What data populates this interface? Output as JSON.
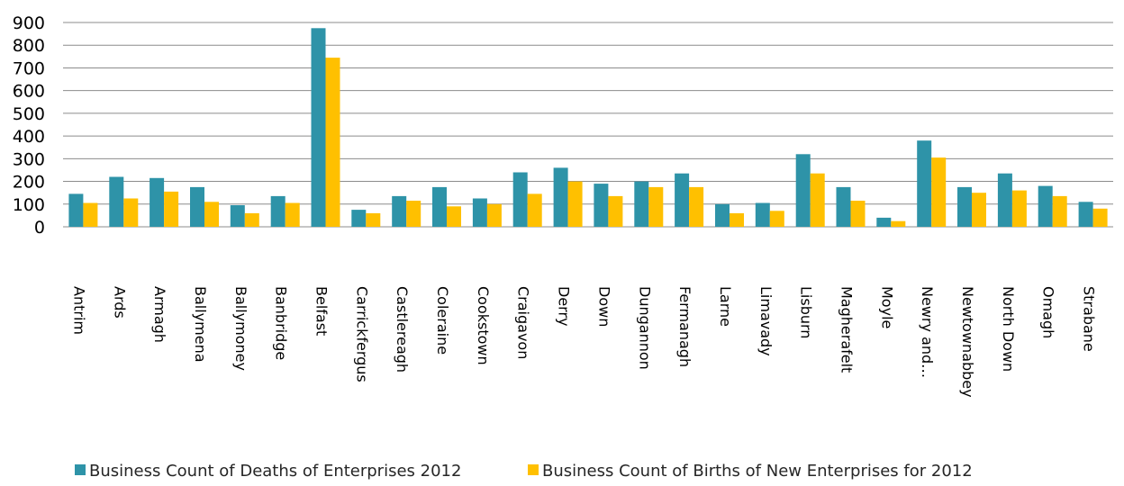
{
  "chart_data": {
    "type": "bar",
    "title": "",
    "xlabel": "",
    "ylabel": "",
    "ylim": [
      0,
      900
    ],
    "yticks": [
      0,
      100,
      200,
      300,
      400,
      500,
      600,
      700,
      800,
      900
    ],
    "grid": true,
    "legend_position": "bottom",
    "categories": [
      "Antrim",
      "Ards",
      "Armagh",
      "Ballymena",
      "Ballymoney",
      "Banbridge",
      "Belfast",
      "Carrickfergus",
      "Castlereagh",
      "Coleraine",
      "Cookstown",
      "Craigavon",
      "Derry",
      "Down",
      "Dungannon",
      "Fermanagh",
      "Larne",
      "Limavady",
      "Lisburn",
      "Magherafelt",
      "Moyle",
      "Newry and…",
      "Newtownabbey",
      "North Down",
      "Omagh",
      "Strabane"
    ],
    "series": [
      {
        "name": "Business Count of Deaths  of Enterprises 2012",
        "color": "#2e93a8",
        "values": [
          145,
          220,
          215,
          175,
          95,
          135,
          875,
          75,
          135,
          175,
          125,
          240,
          260,
          190,
          200,
          235,
          100,
          105,
          320,
          175,
          40,
          380,
          175,
          235,
          180,
          110
        ]
      },
      {
        "name": "Business Count of Births of New Enterprises for 2012",
        "color": "#ffc000",
        "values": [
          105,
          125,
          155,
          110,
          60,
          105,
          745,
          60,
          115,
          90,
          100,
          145,
          200,
          135,
          175,
          175,
          60,
          70,
          235,
          115,
          25,
          305,
          150,
          160,
          135,
          80
        ]
      }
    ]
  }
}
